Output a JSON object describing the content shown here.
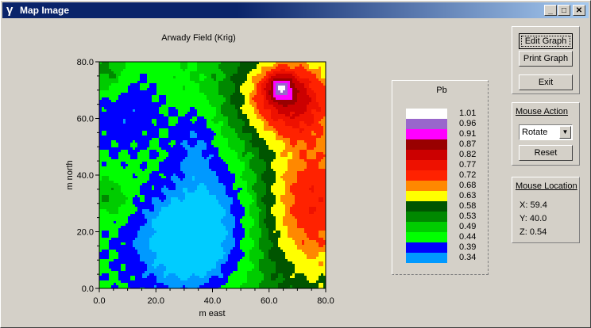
{
  "window": {
    "title": "Map Image",
    "icon": "gamma-icon",
    "controls": {
      "minimize": "_",
      "maximize": "□",
      "close": "✕"
    }
  },
  "chart_data": {
    "type": "heatmap",
    "title": "Arwady Field (Krig)",
    "xlabel": "m east",
    "ylabel": "m north",
    "xlim": [
      0,
      80
    ],
    "ylim": [
      0,
      80
    ],
    "x_ticks": [
      "0.0",
      "20.0",
      "40.0",
      "60.0",
      "80.0"
    ],
    "y_ticks": [
      "0.0",
      "20.0",
      "40.0",
      "60.0",
      "80.0"
    ],
    "legend_title": "Pb",
    "legend": [
      {
        "label": "1.01",
        "color": "#ffffff"
      },
      {
        "label": "0.96",
        "color": "#9966cc"
      },
      {
        "label": "0.91",
        "color": "#ff00ff"
      },
      {
        "label": "0.87",
        "color": "#990000"
      },
      {
        "label": "0.82",
        "color": "#cc0000"
      },
      {
        "label": "0.77",
        "color": "#ee1100"
      },
      {
        "label": "0.72",
        "color": "#ff2200"
      },
      {
        "label": "0.68",
        "color": "#ff8800"
      },
      {
        "label": "0.63",
        "color": "#ffff00"
      },
      {
        "label": "0.58",
        "color": "#005500"
      },
      {
        "label": "0.53",
        "color": "#008800"
      },
      {
        "label": "0.49",
        "color": "#00cc00"
      },
      {
        "label": "0.44",
        "color": "#00ff00"
      },
      {
        "label": "0.39",
        "color": "#0000ff"
      },
      {
        "label": "0.34",
        "color": "#0099ff"
      }
    ],
    "lowest_fill_color": "#00ccff",
    "legend_placement": "right"
  },
  "buttons": {
    "edit_graph": "Edit Graph",
    "print_graph": "Print Graph",
    "exit": "Exit",
    "reset": "Reset"
  },
  "mouse_action": {
    "title": "Mouse Action",
    "selected": "Rotate"
  },
  "mouse_location": {
    "title": "Mouse Location",
    "x": "X: 59.4",
    "y": "Y: 40.0",
    "z": "Z: 0.54"
  }
}
